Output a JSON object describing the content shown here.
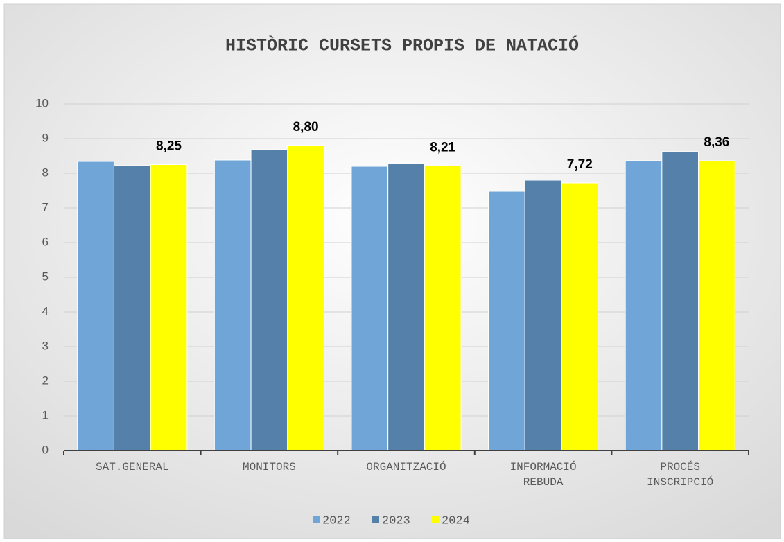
{
  "chart_data": {
    "type": "bar",
    "title": "HISTÒRIC CURSETS PROPIS DE NATACIÓ",
    "categories": [
      "SAT.GENERAL",
      "MONITORS",
      "ORGANITZACIÓ",
      "INFORMACIÓ REBUDA",
      "PROCÉS INSCRIPCIÓ"
    ],
    "series": [
      {
        "name": "2022",
        "color": "#6fa5d7",
        "values": [
          8.34,
          8.38,
          8.2,
          7.48,
          8.36
        ]
      },
      {
        "name": "2023",
        "color": "#5580a9",
        "values": [
          8.22,
          8.68,
          8.28,
          7.8,
          8.62
        ]
      },
      {
        "name": "2024",
        "color": "#ffff00",
        "values": [
          8.25,
          8.8,
          8.21,
          7.72,
          8.36
        ],
        "value_labels": [
          "8,25",
          "8,80",
          "8,21",
          "7,72",
          "8,36"
        ]
      }
    ],
    "ylim": [
      0,
      10
    ],
    "yticks": [
      0,
      1,
      2,
      3,
      4,
      5,
      6,
      7,
      8,
      9,
      10
    ],
    "grid": true,
    "legend": "bottom"
  }
}
